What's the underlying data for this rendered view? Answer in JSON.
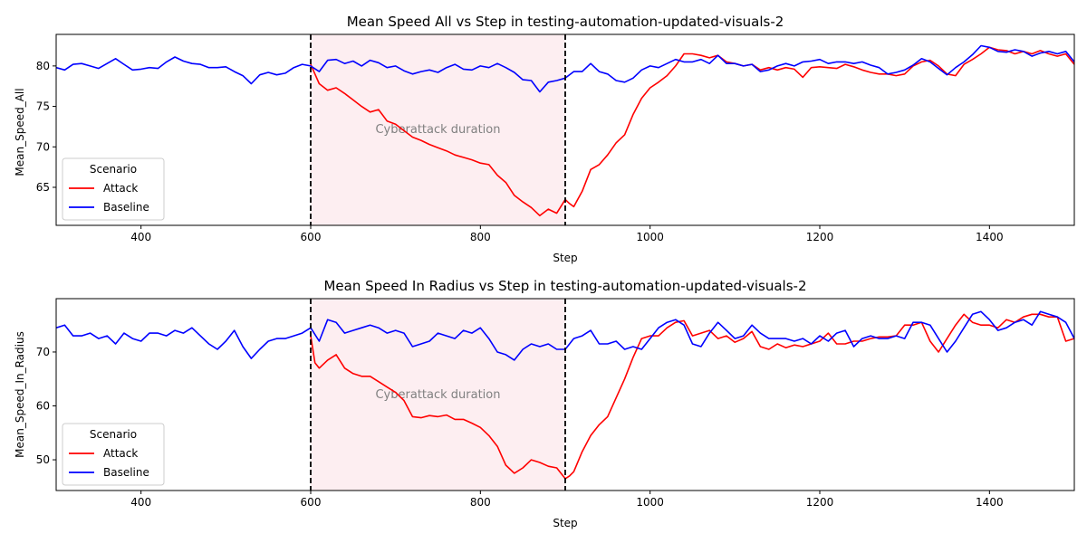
{
  "figure": {
    "background": "#ffffff"
  },
  "colors": {
    "attack": "#ff0000",
    "baseline": "#0000ff",
    "shade": "#fdeef1",
    "vline": "#000000",
    "annotation": "#808080"
  },
  "chart_data": [
    {
      "type": "line",
      "title": "Mean Speed All vs Step in testing-automation-updated-visuals-2",
      "xlabel": "Step",
      "ylabel": "Mean_Speed_All",
      "xlim": [
        300,
        1500
      ],
      "ylim": [
        60.3,
        83.9
      ],
      "xticks": [
        400,
        600,
        800,
        1000,
        1200,
        1400
      ],
      "yticks": [
        65,
        70,
        75,
        80
      ],
      "grid": false,
      "legend": {
        "title": "Scenario",
        "placement": "lower-left",
        "entries": [
          "Attack",
          "Baseline"
        ]
      },
      "shaded_region": {
        "x": [
          600,
          900
        ],
        "label": "Cyberattack duration"
      },
      "vlines": [
        600,
        900
      ],
      "series": [
        {
          "name": "Attack",
          "x": [
            600,
            605,
            610,
            620,
            630,
            640,
            650,
            660,
            670,
            680,
            690,
            700,
            710,
            720,
            730,
            740,
            750,
            760,
            770,
            780,
            790,
            800,
            810,
            820,
            830,
            840,
            850,
            860,
            870,
            880,
            890,
            900,
            905,
            910,
            920,
            930,
            940,
            950,
            960,
            970,
            980,
            990,
            1000,
            1010,
            1020,
            1030,
            1040,
            1050,
            1060,
            1070,
            1080,
            1090,
            1100,
            1110,
            1120,
            1130,
            1140,
            1150,
            1160,
            1170,
            1180,
            1190,
            1200,
            1210,
            1220,
            1230,
            1240,
            1250,
            1260,
            1270,
            1280,
            1290,
            1300,
            1310,
            1320,
            1330,
            1340,
            1350,
            1360,
            1370,
            1380,
            1390,
            1400,
            1410,
            1420,
            1430,
            1440,
            1450,
            1460,
            1470,
            1480,
            1490,
            1500
          ],
          "y": [
            80.2,
            79.0,
            77.8,
            77.0,
            77.3,
            76.6,
            75.8,
            75.0,
            74.3,
            74.6,
            73.2,
            72.8,
            72.0,
            71.2,
            70.8,
            70.3,
            69.9,
            69.5,
            69.0,
            68.7,
            68.4,
            68.0,
            67.8,
            66.5,
            65.6,
            64.0,
            63.2,
            62.5,
            61.5,
            62.3,
            61.8,
            63.5,
            63.0,
            62.6,
            64.5,
            67.2,
            67.8,
            69.0,
            70.5,
            71.5,
            74.0,
            76.0,
            77.3,
            78.0,
            78.8,
            80.0,
            81.5,
            81.5,
            81.3,
            81.0,
            81.3,
            80.5,
            80.3,
            80.0,
            80.2,
            79.5,
            79.8,
            79.5,
            79.8,
            79.6,
            78.6,
            79.8,
            79.9,
            79.8,
            79.7,
            80.2,
            79.9,
            79.5,
            79.2,
            79.0,
            79.0,
            78.8,
            79.0,
            80.0,
            80.5,
            80.7,
            80.0,
            79.0,
            78.8,
            80.2,
            80.8,
            81.5,
            82.3,
            82.0,
            81.9,
            81.5,
            81.8,
            81.5,
            81.9,
            81.5,
            81.2,
            81.5,
            80.2
          ]
        },
        {
          "name": "Baseline",
          "x": [
            300,
            310,
            320,
            330,
            340,
            350,
            360,
            370,
            380,
            390,
            400,
            410,
            420,
            430,
            440,
            450,
            460,
            470,
            480,
            490,
            500,
            510,
            520,
            530,
            540,
            550,
            560,
            570,
            580,
            590,
            600,
            610,
            620,
            630,
            640,
            650,
            660,
            670,
            680,
            690,
            700,
            710,
            720,
            730,
            740,
            750,
            760,
            770,
            780,
            790,
            800,
            810,
            820,
            830,
            840,
            850,
            860,
            870,
            880,
            890,
            900,
            910,
            920,
            930,
            940,
            950,
            960,
            970,
            980,
            990,
            1000,
            1010,
            1020,
            1030,
            1040,
            1050,
            1060,
            1070,
            1080,
            1090,
            1100,
            1110,
            1120,
            1130,
            1140,
            1150,
            1160,
            1170,
            1180,
            1190,
            1200,
            1210,
            1220,
            1230,
            1240,
            1250,
            1260,
            1270,
            1280,
            1290,
            1300,
            1310,
            1320,
            1330,
            1340,
            1350,
            1360,
            1370,
            1380,
            1390,
            1400,
            1410,
            1420,
            1430,
            1440,
            1450,
            1460,
            1470,
            1480,
            1490,
            1500
          ],
          "y": [
            79.8,
            79.5,
            80.2,
            80.3,
            80.0,
            79.7,
            80.3,
            80.9,
            80.2,
            79.5,
            79.6,
            79.8,
            79.7,
            80.5,
            81.1,
            80.6,
            80.3,
            80.2,
            79.8,
            79.8,
            79.9,
            79.3,
            78.8,
            77.8,
            78.9,
            79.2,
            78.9,
            79.1,
            79.8,
            80.2,
            80.0,
            79.3,
            80.7,
            80.8,
            80.3,
            80.6,
            80.0,
            80.7,
            80.4,
            79.8,
            80.0,
            79.4,
            79.0,
            79.3,
            79.5,
            79.2,
            79.8,
            80.2,
            79.6,
            79.5,
            80.0,
            79.8,
            80.3,
            79.8,
            79.2,
            78.3,
            78.2,
            76.8,
            78.0,
            78.2,
            78.5,
            79.3,
            79.3,
            80.3,
            79.3,
            79.0,
            78.2,
            78.0,
            78.5,
            79.5,
            80.0,
            79.8,
            80.3,
            80.8,
            80.5,
            80.5,
            80.8,
            80.3,
            81.3,
            80.3,
            80.3,
            80.0,
            80.2,
            79.3,
            79.5,
            80.0,
            80.3,
            80.0,
            80.5,
            80.6,
            80.8,
            80.3,
            80.5,
            80.5,
            80.3,
            80.5,
            80.1,
            79.8,
            79.0,
            79.2,
            79.5,
            80.1,
            80.9,
            80.5,
            79.7,
            78.9,
            79.8,
            80.5,
            81.4,
            82.5,
            82.3,
            81.8,
            81.7,
            82.0,
            81.8,
            81.2,
            81.6,
            81.8,
            81.5,
            81.8,
            80.5
          ]
        }
      ]
    },
    {
      "type": "line",
      "title": "Mean Speed In Radius vs Step in testing-automation-updated-visuals-2",
      "xlabel": "Step",
      "ylabel": "Mean_Speed_In_Radius",
      "xlim": [
        300,
        1500
      ],
      "ylim": [
        44.3,
        79.9
      ],
      "xticks": [
        400,
        600,
        800,
        1000,
        1200,
        1400
      ],
      "yticks": [
        50,
        60,
        70
      ],
      "grid": false,
      "legend": {
        "title": "Scenario",
        "placement": "lower-left",
        "entries": [
          "Attack",
          "Baseline"
        ]
      },
      "shaded_region": {
        "x": [
          600,
          900
        ],
        "label": "Cyberattack duration"
      },
      "vlines": [
        600,
        900
      ],
      "series": [
        {
          "name": "Attack",
          "x": [
            600,
            605,
            610,
            620,
            630,
            640,
            650,
            660,
            670,
            680,
            690,
            700,
            710,
            720,
            730,
            740,
            750,
            760,
            770,
            780,
            790,
            800,
            810,
            820,
            830,
            840,
            850,
            860,
            870,
            880,
            890,
            900,
            905,
            910,
            920,
            930,
            940,
            950,
            960,
            970,
            980,
            990,
            1000,
            1010,
            1020,
            1030,
            1040,
            1050,
            1060,
            1070,
            1080,
            1090,
            1100,
            1110,
            1120,
            1130,
            1140,
            1150,
            1160,
            1170,
            1180,
            1190,
            1200,
            1210,
            1220,
            1230,
            1240,
            1250,
            1260,
            1270,
            1280,
            1290,
            1300,
            1310,
            1320,
            1330,
            1340,
            1350,
            1360,
            1370,
            1380,
            1390,
            1400,
            1410,
            1420,
            1430,
            1440,
            1450,
            1460,
            1470,
            1480,
            1490,
            1500
          ],
          "y": [
            73.0,
            68.0,
            67.0,
            68.5,
            69.5,
            67.0,
            66.0,
            65.5,
            65.5,
            64.5,
            63.5,
            62.5,
            61.0,
            58.0,
            57.8,
            58.2,
            58.0,
            58.3,
            57.5,
            57.5,
            56.8,
            56.0,
            54.5,
            52.5,
            49.0,
            47.5,
            48.5,
            50.0,
            49.5,
            48.8,
            48.5,
            46.5,
            47.0,
            47.8,
            51.5,
            54.5,
            56.5,
            58.0,
            61.5,
            65.0,
            69.0,
            72.5,
            73.0,
            73.0,
            74.5,
            75.5,
            75.8,
            73.0,
            73.5,
            74.0,
            72.5,
            73.0,
            71.8,
            72.5,
            73.8,
            71.0,
            70.5,
            71.5,
            70.8,
            71.3,
            71.0,
            71.5,
            72.0,
            73.5,
            71.5,
            71.5,
            72.0,
            72.0,
            72.5,
            72.8,
            72.8,
            73.0,
            75.0,
            75.0,
            75.5,
            72.0,
            70.0,
            72.5,
            75.0,
            77.0,
            75.5,
            75.0,
            75.0,
            74.5,
            76.0,
            75.5,
            76.5,
            77.0,
            77.0,
            76.5,
            76.5,
            72.0,
            72.5
          ]
        },
        {
          "name": "Baseline",
          "x": [
            300,
            310,
            320,
            330,
            340,
            350,
            360,
            370,
            380,
            390,
            400,
            410,
            420,
            430,
            440,
            450,
            460,
            470,
            480,
            490,
            500,
            510,
            520,
            530,
            540,
            550,
            560,
            570,
            580,
            590,
            600,
            610,
            620,
            630,
            640,
            650,
            660,
            670,
            680,
            690,
            700,
            710,
            720,
            730,
            740,
            750,
            760,
            770,
            780,
            790,
            800,
            810,
            820,
            830,
            840,
            850,
            860,
            870,
            880,
            890,
            900,
            910,
            920,
            930,
            940,
            950,
            960,
            970,
            980,
            990,
            1000,
            1010,
            1020,
            1030,
            1040,
            1050,
            1060,
            1070,
            1080,
            1090,
            1100,
            1110,
            1120,
            1130,
            1140,
            1150,
            1160,
            1170,
            1180,
            1190,
            1200,
            1210,
            1220,
            1230,
            1240,
            1250,
            1260,
            1270,
            1280,
            1290,
            1300,
            1310,
            1320,
            1330,
            1340,
            1350,
            1360,
            1370,
            1380,
            1390,
            1400,
            1410,
            1420,
            1430,
            1440,
            1450,
            1460,
            1470,
            1480,
            1490,
            1500
          ],
          "y": [
            74.5,
            75.0,
            73.0,
            73.0,
            73.5,
            72.5,
            73.0,
            71.5,
            73.5,
            72.5,
            72.0,
            73.5,
            73.5,
            73.0,
            74.0,
            73.5,
            74.5,
            73.0,
            71.5,
            70.5,
            72.0,
            74.0,
            71.0,
            68.8,
            70.5,
            72.0,
            72.5,
            72.5,
            73.0,
            73.5,
            74.5,
            72.0,
            76.0,
            75.5,
            73.5,
            74.0,
            74.5,
            75.0,
            74.5,
            73.5,
            74.0,
            73.5,
            71.0,
            71.5,
            72.0,
            73.5,
            73.0,
            72.5,
            74.0,
            73.5,
            74.5,
            72.5,
            70.0,
            69.5,
            68.5,
            70.5,
            71.5,
            71.0,
            71.5,
            70.5,
            70.5,
            72.5,
            73.0,
            74.0,
            71.5,
            71.5,
            72.0,
            70.5,
            71.0,
            70.5,
            72.5,
            74.5,
            75.5,
            76.0,
            75.0,
            71.5,
            71.0,
            73.5,
            75.5,
            74.0,
            72.5,
            73.0,
            75.0,
            73.5,
            72.5,
            72.5,
            72.5,
            72.0,
            72.5,
            71.5,
            73.0,
            72.0,
            73.5,
            74.0,
            71.0,
            72.5,
            73.0,
            72.5,
            72.5,
            73.0,
            72.5,
            75.5,
            75.5,
            75.0,
            72.5,
            70.0,
            72.0,
            74.5,
            77.0,
            77.5,
            76.0,
            74.0,
            74.5,
            75.5,
            76.0,
            75.0,
            77.5,
            77.0,
            76.5,
            75.5,
            72.5
          ]
        }
      ]
    }
  ]
}
